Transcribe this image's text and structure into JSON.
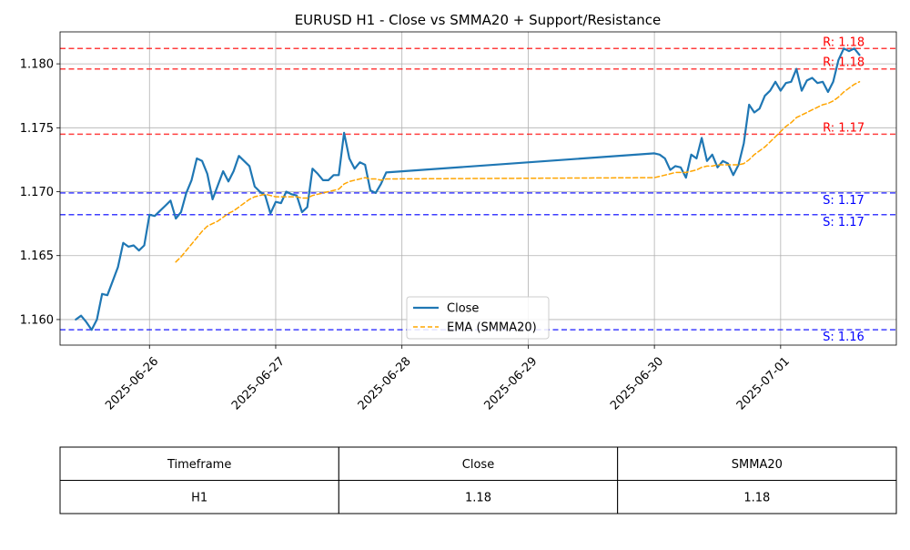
{
  "chart_data": {
    "type": "line",
    "title": "EURUSD H1 - Close vs SMMA20 + Support/Resistance",
    "xlabel": "",
    "ylabel": "",
    "ylim": [
      1.158,
      1.1825
    ],
    "xlim": [
      "2025-06-25 07:00",
      "2025-07-01 22:00"
    ],
    "x_ticks": [
      "2025-06-26",
      "2025-06-27",
      "2025-06-28",
      "2025-06-29",
      "2025-06-30",
      "2025-07-01"
    ],
    "y_ticks": [
      "1.160",
      "1.165",
      "1.170",
      "1.175",
      "1.180"
    ],
    "grid": true,
    "legend": {
      "placement": "lower-center",
      "entries": [
        {
          "label": "Close",
          "color": "#1f77b4",
          "style": "solid"
        },
        {
          "label": "EMA (SMMA20)",
          "color": "#ffa500",
          "style": "dashed"
        }
      ]
    },
    "series": [
      {
        "name": "Close",
        "color": "#1f77b4",
        "points": [
          [
            "2025-06-25 10:00",
            1.16
          ],
          [
            "2025-06-25 11:00",
            1.1603
          ],
          [
            "2025-06-25 12:00",
            1.1598
          ],
          [
            "2025-06-25 13:00",
            1.1592
          ],
          [
            "2025-06-25 14:00",
            1.16
          ],
          [
            "2025-06-25 15:00",
            1.162
          ],
          [
            "2025-06-25 16:00",
            1.1619
          ],
          [
            "2025-06-25 17:00",
            1.163
          ],
          [
            "2025-06-25 18:00",
            1.1641
          ],
          [
            "2025-06-25 19:00",
            1.166
          ],
          [
            "2025-06-25 20:00",
            1.1657
          ],
          [
            "2025-06-25 21:00",
            1.1658
          ],
          [
            "2025-06-25 22:00",
            1.1654
          ],
          [
            "2025-06-25 23:00",
            1.1658
          ],
          [
            "2025-06-26 00:00",
            1.1682
          ],
          [
            "2025-06-26 01:00",
            1.1681
          ],
          [
            "2025-06-26 02:00",
            1.1685
          ],
          [
            "2025-06-26 03:00",
            1.1689
          ],
          [
            "2025-06-26 04:00",
            1.1693
          ],
          [
            "2025-06-26 05:00",
            1.1679
          ],
          [
            "2025-06-26 06:00",
            1.1684
          ],
          [
            "2025-06-26 07:00",
            1.1699
          ],
          [
            "2025-06-26 08:00",
            1.1709
          ],
          [
            "2025-06-26 09:00",
            1.1726
          ],
          [
            "2025-06-26 10:00",
            1.1724
          ],
          [
            "2025-06-26 11:00",
            1.1714
          ],
          [
            "2025-06-26 12:00",
            1.1694
          ],
          [
            "2025-06-26 13:00",
            1.1705
          ],
          [
            "2025-06-26 14:00",
            1.1716
          ],
          [
            "2025-06-26 15:00",
            1.1708
          ],
          [
            "2025-06-26 16:00",
            1.1716
          ],
          [
            "2025-06-26 17:00",
            1.1728
          ],
          [
            "2025-06-26 18:00",
            1.1724
          ],
          [
            "2025-06-26 19:00",
            1.172
          ],
          [
            "2025-06-26 20:00",
            1.1704
          ],
          [
            "2025-06-26 21:00",
            1.17
          ],
          [
            "2025-06-26 22:00",
            1.1697
          ],
          [
            "2025-06-26 23:00",
            1.1683
          ],
          [
            "2025-06-27 00:00",
            1.1692
          ],
          [
            "2025-06-27 01:00",
            1.1691
          ],
          [
            "2025-06-27 02:00",
            1.17
          ],
          [
            "2025-06-27 03:00",
            1.1698
          ],
          [
            "2025-06-27 04:00",
            1.1697
          ],
          [
            "2025-06-27 05:00",
            1.1684
          ],
          [
            "2025-06-27 06:00",
            1.1688
          ],
          [
            "2025-06-27 07:00",
            1.1718
          ],
          [
            "2025-06-27 08:00",
            1.1714
          ],
          [
            "2025-06-27 09:00",
            1.1709
          ],
          [
            "2025-06-27 10:00",
            1.1709
          ],
          [
            "2025-06-27 11:00",
            1.1713
          ],
          [
            "2025-06-27 12:00",
            1.1713
          ],
          [
            "2025-06-27 13:00",
            1.1746
          ],
          [
            "2025-06-27 14:00",
            1.1726
          ],
          [
            "2025-06-27 15:00",
            1.1718
          ],
          [
            "2025-06-27 16:00",
            1.1723
          ],
          [
            "2025-06-27 17:00",
            1.1721
          ],
          [
            "2025-06-27 18:00",
            1.1701
          ],
          [
            "2025-06-27 19:00",
            1.1699
          ],
          [
            "2025-06-27 20:00",
            1.1706
          ],
          [
            "2025-06-27 21:00",
            1.1715
          ],
          [
            "2025-06-30 00:00",
            1.173
          ],
          [
            "2025-06-30 01:00",
            1.1729
          ],
          [
            "2025-06-30 02:00",
            1.1726
          ],
          [
            "2025-06-30 03:00",
            1.1717
          ],
          [
            "2025-06-30 04:00",
            1.172
          ],
          [
            "2025-06-30 05:00",
            1.1719
          ],
          [
            "2025-06-30 06:00",
            1.1711
          ],
          [
            "2025-06-30 07:00",
            1.1729
          ],
          [
            "2025-06-30 08:00",
            1.1726
          ],
          [
            "2025-06-30 09:00",
            1.1742
          ],
          [
            "2025-06-30 10:00",
            1.1724
          ],
          [
            "2025-06-30 11:00",
            1.1729
          ],
          [
            "2025-06-30 12:00",
            1.1719
          ],
          [
            "2025-06-30 13:00",
            1.1724
          ],
          [
            "2025-06-30 14:00",
            1.1722
          ],
          [
            "2025-06-30 15:00",
            1.1713
          ],
          [
            "2025-06-30 16:00",
            1.1721
          ],
          [
            "2025-06-30 17:00",
            1.1738
          ],
          [
            "2025-06-30 18:00",
            1.1768
          ],
          [
            "2025-06-30 19:00",
            1.1762
          ],
          [
            "2025-06-30 20:00",
            1.1765
          ],
          [
            "2025-06-30 21:00",
            1.1775
          ],
          [
            "2025-06-30 22:00",
            1.1779
          ],
          [
            "2025-06-30 23:00",
            1.1786
          ],
          [
            "2025-07-01 00:00",
            1.1779
          ],
          [
            "2025-07-01 01:00",
            1.1785
          ],
          [
            "2025-07-01 02:00",
            1.1786
          ],
          [
            "2025-07-01 03:00",
            1.1796
          ],
          [
            "2025-07-01 04:00",
            1.1779
          ],
          [
            "2025-07-01 05:00",
            1.1787
          ],
          [
            "2025-07-01 06:00",
            1.1789
          ],
          [
            "2025-07-01 07:00",
            1.1785
          ],
          [
            "2025-07-01 08:00",
            1.1786
          ],
          [
            "2025-07-01 09:00",
            1.1778
          ],
          [
            "2025-07-01 10:00",
            1.1786
          ],
          [
            "2025-07-01 11:00",
            1.1803
          ],
          [
            "2025-07-01 12:00",
            1.1812
          ],
          [
            "2025-07-01 13:00",
            1.181
          ],
          [
            "2025-07-01 14:00",
            1.1812
          ],
          [
            "2025-07-01 15:00",
            1.1807
          ]
        ]
      },
      {
        "name": "EMA (SMMA20)",
        "color": "#ffa500",
        "dashed": true,
        "points": [
          [
            "2025-06-26 05:00",
            1.1645
          ],
          [
            "2025-06-26 06:00",
            1.1649
          ],
          [
            "2025-06-26 07:00",
            1.1654
          ],
          [
            "2025-06-26 08:00",
            1.1659
          ],
          [
            "2025-06-26 09:00",
            1.1664
          ],
          [
            "2025-06-26 10:00",
            1.1669
          ],
          [
            "2025-06-26 11:00",
            1.1673
          ],
          [
            "2025-06-26 12:00",
            1.1675
          ],
          [
            "2025-06-26 13:00",
            1.1677
          ],
          [
            "2025-06-26 14:00",
            1.168
          ],
          [
            "2025-06-26 15:00",
            1.1683
          ],
          [
            "2025-06-26 16:00",
            1.1685
          ],
          [
            "2025-06-26 17:00",
            1.1688
          ],
          [
            "2025-06-26 18:00",
            1.1691
          ],
          [
            "2025-06-26 19:00",
            1.1694
          ],
          [
            "2025-06-26 20:00",
            1.1696
          ],
          [
            "2025-06-26 21:00",
            1.1697
          ],
          [
            "2025-06-26 22:00",
            1.1698
          ],
          [
            "2025-06-26 23:00",
            1.1697
          ],
          [
            "2025-06-27 00:00",
            1.1696
          ],
          [
            "2025-06-27 01:00",
            1.1696
          ],
          [
            "2025-06-27 02:00",
            1.1696
          ],
          [
            "2025-06-27 03:00",
            1.1696
          ],
          [
            "2025-06-27 04:00",
            1.1696
          ],
          [
            "2025-06-27 05:00",
            1.1695
          ],
          [
            "2025-06-27 06:00",
            1.1695
          ],
          [
            "2025-06-27 07:00",
            1.1697
          ],
          [
            "2025-06-27 08:00",
            1.1698
          ],
          [
            "2025-06-27 09:00",
            1.1699
          ],
          [
            "2025-06-27 10:00",
            1.17
          ],
          [
            "2025-06-27 11:00",
            1.1701
          ],
          [
            "2025-06-27 12:00",
            1.1702
          ],
          [
            "2025-06-27 13:00",
            1.1706
          ],
          [
            "2025-06-27 14:00",
            1.1708
          ],
          [
            "2025-06-27 15:00",
            1.1709
          ],
          [
            "2025-06-27 16:00",
            1.171
          ],
          [
            "2025-06-27 17:00",
            1.1711
          ],
          [
            "2025-06-27 18:00",
            1.171
          ],
          [
            "2025-06-27 19:00",
            1.171
          ],
          [
            "2025-06-27 20:00",
            1.1709
          ],
          [
            "2025-06-27 21:00",
            1.171
          ],
          [
            "2025-06-30 00:00",
            1.1711
          ],
          [
            "2025-06-30 01:00",
            1.1712
          ],
          [
            "2025-06-30 02:00",
            1.1713
          ],
          [
            "2025-06-30 03:00",
            1.1714
          ],
          [
            "2025-06-30 04:00",
            1.1715
          ],
          [
            "2025-06-30 05:00",
            1.1715
          ],
          [
            "2025-06-30 06:00",
            1.1715
          ],
          [
            "2025-06-30 07:00",
            1.1716
          ],
          [
            "2025-06-30 08:00",
            1.1717
          ],
          [
            "2025-06-30 09:00",
            1.1719
          ],
          [
            "2025-06-30 10:00",
            1.172
          ],
          [
            "2025-06-30 11:00",
            1.172
          ],
          [
            "2025-06-30 12:00",
            1.1721
          ],
          [
            "2025-06-30 13:00",
            1.1721
          ],
          [
            "2025-06-30 14:00",
            1.1721
          ],
          [
            "2025-06-30 15:00",
            1.1721
          ],
          [
            "2025-06-30 16:00",
            1.1721
          ],
          [
            "2025-06-30 17:00",
            1.1722
          ],
          [
            "2025-06-30 18:00",
            1.1725
          ],
          [
            "2025-06-30 19:00",
            1.1729
          ],
          [
            "2025-06-30 20:00",
            1.1732
          ],
          [
            "2025-06-30 21:00",
            1.1735
          ],
          [
            "2025-06-30 22:00",
            1.1739
          ],
          [
            "2025-06-30 23:00",
            1.1743
          ],
          [
            "2025-07-01 00:00",
            1.1747
          ],
          [
            "2025-07-01 01:00",
            1.1751
          ],
          [
            "2025-07-01 02:00",
            1.1754
          ],
          [
            "2025-07-01 03:00",
            1.1758
          ],
          [
            "2025-07-01 04:00",
            1.176
          ],
          [
            "2025-07-01 05:00",
            1.1762
          ],
          [
            "2025-07-01 06:00",
            1.1764
          ],
          [
            "2025-07-01 07:00",
            1.1766
          ],
          [
            "2025-07-01 08:00",
            1.1768
          ],
          [
            "2025-07-01 09:00",
            1.1769
          ],
          [
            "2025-07-01 10:00",
            1.1771
          ],
          [
            "2025-07-01 11:00",
            1.1774
          ],
          [
            "2025-07-01 12:00",
            1.1778
          ],
          [
            "2025-07-01 13:00",
            1.1781
          ],
          [
            "2025-07-01 14:00",
            1.1784
          ],
          [
            "2025-07-01 15:00",
            1.1786
          ]
        ]
      }
    ],
    "levels": [
      {
        "kind": "resistance",
        "value": 1.1812,
        "label": "R: 1.18",
        "color": "#ff0000"
      },
      {
        "kind": "resistance",
        "value": 1.1796,
        "label": "R: 1.18",
        "color": "#ff0000"
      },
      {
        "kind": "resistance",
        "value": 1.1745,
        "label": "R: 1.17",
        "color": "#ff0000"
      },
      {
        "kind": "support",
        "value": 1.1699,
        "label": "S: 1.17",
        "color": "#0000ff"
      },
      {
        "kind": "support",
        "value": 1.1682,
        "label": "S: 1.17",
        "color": "#0000ff"
      },
      {
        "kind": "support",
        "value": 1.1592,
        "label": "S: 1.16",
        "color": "#0000ff"
      }
    ]
  },
  "summary_table": {
    "headers": [
      "Timeframe",
      "Close",
      "SMMA20"
    ],
    "rows": [
      [
        "H1",
        "1.18",
        "1.18"
      ]
    ]
  }
}
